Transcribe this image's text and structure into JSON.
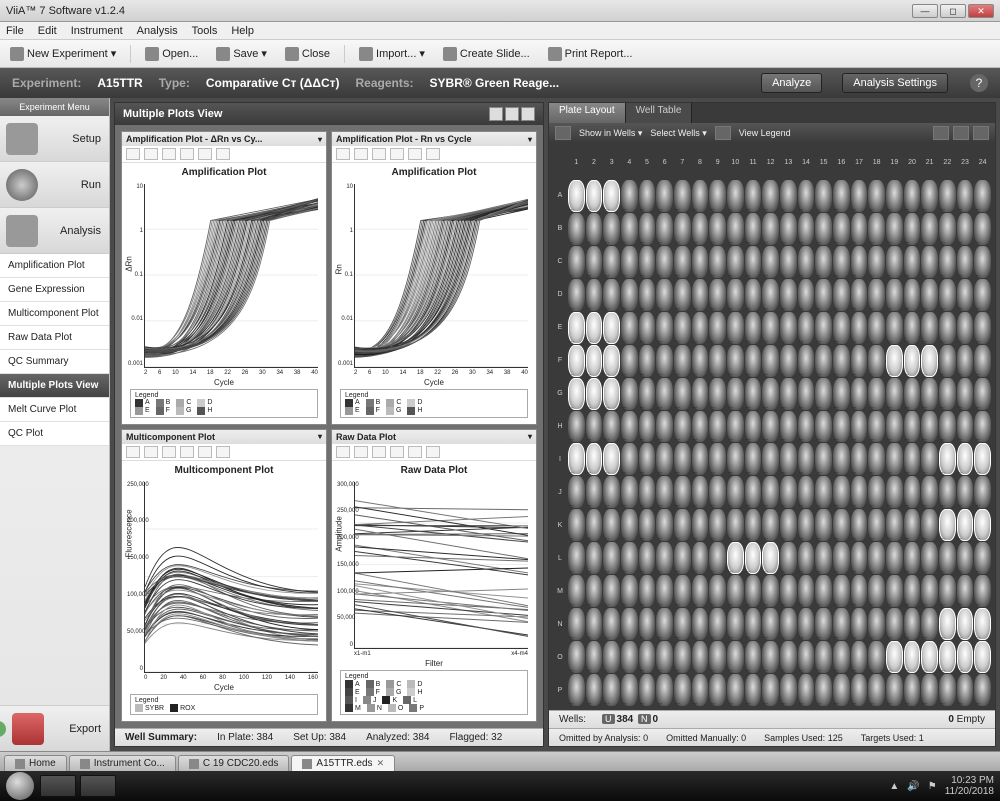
{
  "window": {
    "title": "ViiA™ 7 Software v1.2.4"
  },
  "menu": [
    "File",
    "Edit",
    "Instrument",
    "Analysis",
    "Tools",
    "Help"
  ],
  "toolbar": {
    "new": "New Experiment",
    "open": "Open...",
    "save": "Save",
    "close": "Close",
    "import": "Import...",
    "slide": "Create Slide...",
    "print": "Print Report..."
  },
  "header": {
    "exp_lbl": "Experiment:",
    "exp_val": "A15TTR",
    "type_lbl": "Type:",
    "type_val": "Comparative Cᴛ (ΔΔCᴛ)",
    "reag_lbl": "Reagents:",
    "reag_val": "SYBR® Green Reage...",
    "analyze": "Analyze",
    "settings": "Analysis Settings"
  },
  "sidebar": {
    "menu_title": "Experiment Menu",
    "setup": "Setup",
    "run": "Run",
    "analysis": "Analysis",
    "items": [
      "Amplification Plot",
      "Gene Expression",
      "Multicomponent Plot",
      "Raw Data Plot",
      "QC Summary",
      "Multiple Plots View",
      "Melt Curve Plot",
      "QC Plot"
    ],
    "active_index": 5,
    "export": "Export"
  },
  "plots_panel": {
    "title": "Multiple Plots View",
    "plots": [
      {
        "head": "Amplification Plot - ΔRn vs Cy...",
        "title": "Amplification Plot",
        "ylabel": "ΔRn",
        "xlabel": "Cycle",
        "yticks": [
          "10",
          "1",
          "0.1",
          "0.01",
          "0.001"
        ],
        "xticks": [
          "2",
          "6",
          "10",
          "14",
          "18",
          "22",
          "26",
          "30",
          "34",
          "38",
          "40"
        ],
        "legend_rows": [
          [
            "A",
            "B",
            "C",
            "D"
          ],
          [
            "E",
            "F",
            "G",
            "H"
          ]
        ],
        "legend_colors": [
          "#333333",
          "#777777",
          "#aaaaaa",
          "#cccccc",
          "#999999",
          "#666666",
          "#bbbbbb",
          "#555555"
        ]
      },
      {
        "head": "Amplification Plot - Rn vs Cycle",
        "title": "Amplification Plot",
        "ylabel": "Rn",
        "xlabel": "Cycle",
        "yticks": [
          "10",
          "1",
          "0.1",
          "0.01",
          "0.001"
        ],
        "xticks": [
          "2",
          "6",
          "10",
          "14",
          "18",
          "22",
          "26",
          "30",
          "34",
          "38",
          "40"
        ],
        "legend_rows": [
          [
            "A",
            "B",
            "C",
            "D"
          ],
          [
            "E",
            "F",
            "G",
            "H"
          ]
        ],
        "legend_colors": [
          "#333333",
          "#777777",
          "#aaaaaa",
          "#cccccc",
          "#999999",
          "#666666",
          "#bbbbbb",
          "#555555"
        ]
      },
      {
        "head": "Multicomponent Plot",
        "title": "Multicomponent Plot",
        "ylabel": "Fluorescence",
        "xlabel": "Cycle",
        "yticks": [
          "250,000",
          "200,000",
          "150,000",
          "100,000",
          "50,000",
          "0"
        ],
        "xticks": [
          "0",
          "20",
          "40",
          "60",
          "80",
          "100",
          "120",
          "140",
          "160"
        ],
        "legend_rows": [
          [
            "SYBR",
            "ROX"
          ]
        ],
        "legend_colors": [
          "#bbbbbb",
          "#222222"
        ]
      },
      {
        "head": "Raw Data Plot",
        "title": "Raw Data Plot",
        "ylabel": "Amplitude",
        "xlabel": "Filter",
        "yticks": [
          "300,000",
          "250,000",
          "200,000",
          "150,000",
          "100,000",
          "50,000",
          "0"
        ],
        "xticks": [
          "x1-m1",
          "",
          "",
          "",
          "",
          "x4-m4"
        ],
        "legend_rows": [
          [
            "A",
            "B",
            "C",
            "D"
          ],
          [
            "E",
            "F",
            "G",
            "H"
          ],
          [
            "I",
            "J",
            "K",
            "L"
          ],
          [
            "M",
            "N",
            "O",
            "P"
          ]
        ],
        "legend_colors": [
          "#333",
          "#666",
          "#999",
          "#bbb",
          "#444",
          "#777",
          "#aaa",
          "#ccc",
          "#555",
          "#888",
          "#222",
          "#666",
          "#333",
          "#999",
          "#bbb",
          "#777"
        ]
      }
    ]
  },
  "plate": {
    "tabs": [
      "Plate Layout",
      "Well Table"
    ],
    "active_tab": 0,
    "tools": {
      "show": "Show in Wells",
      "select": "Select Wells",
      "legend": "View Legend"
    },
    "columns": 24,
    "rows": [
      "A",
      "B",
      "C",
      "D",
      "E",
      "F",
      "G",
      "H",
      "I",
      "J",
      "K",
      "L",
      "M",
      "N",
      "O",
      "P"
    ],
    "selected": [
      "A1",
      "A2",
      "A3",
      "E1",
      "E2",
      "E3",
      "F1",
      "F2",
      "F3",
      "F19",
      "F20",
      "F21",
      "G1",
      "G2",
      "G3",
      "I1",
      "I2",
      "I3",
      "L10",
      "L11",
      "L12",
      "N22",
      "N23",
      "N24",
      "O19",
      "O20",
      "O21",
      "O22",
      "O23",
      "O24",
      "I22",
      "I23",
      "I24",
      "K22",
      "K23",
      "K24"
    ],
    "summary": {
      "wells_lbl": "Wells:",
      "u": "384",
      "n": "0",
      "empty": "0",
      "empty_lbl": "Empty",
      "omit_a_lbl": "Omitted by Analysis:",
      "omit_a": "0",
      "omit_m_lbl": "Omitted Manually:",
      "omit_m": "0",
      "samples_lbl": "Samples Used:",
      "samples": "125",
      "targets_lbl": "Targets Used:",
      "targets": "1"
    }
  },
  "well_summary": {
    "title": "Well Summary:",
    "inplate_lbl": "In Plate:",
    "inplate": "384",
    "setup_lbl": "Set Up:",
    "setup": "384",
    "analyzed_lbl": "Analyzed:",
    "analyzed": "384",
    "flagged_lbl": "Flagged:",
    "flagged": "32"
  },
  "bottom_tabs": [
    {
      "label": "Home",
      "icon": true
    },
    {
      "label": "Instrument Co...",
      "icon": true
    },
    {
      "label": "C 19 CDC20.eds",
      "icon": true
    },
    {
      "label": "A15TTR.eds",
      "icon": true,
      "active": true,
      "close": true
    }
  ],
  "taskbar": {
    "time": "10:23 PM",
    "date": "11/20/2018"
  },
  "colors": {
    "panel_dark": "#3a3a3a",
    "panel_mid": "#505050"
  }
}
